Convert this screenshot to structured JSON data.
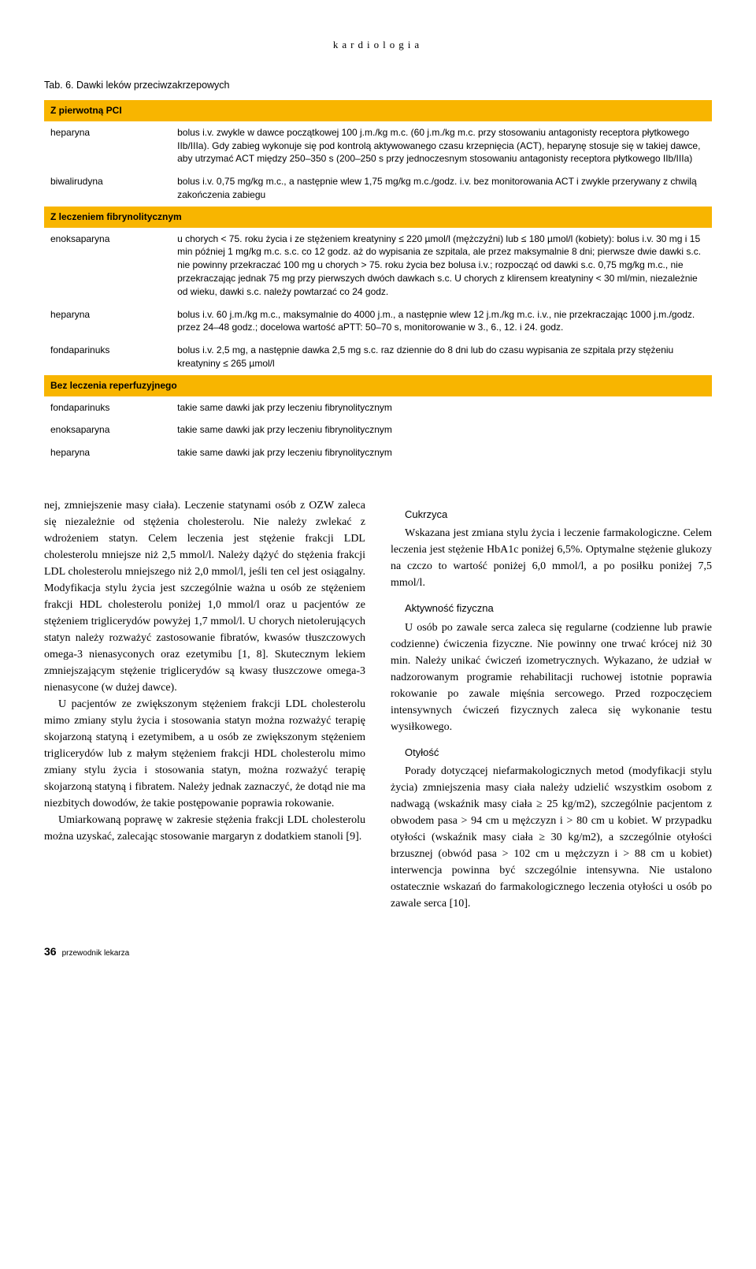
{
  "header": "kardiologia",
  "tableCaption": "Tab. 6. Dawki leków przeciwzakrzepowych",
  "sections": [
    {
      "title": "Z pierwotną PCI",
      "rows": [
        {
          "drug": "heparyna",
          "desc": "bolus i.v. zwykle w dawce początkowej 100 j.m./kg m.c. (60 j.m./kg m.c. przy stosowaniu antagonisty receptora płytkowego IIb/IIIa). Gdy zabieg wykonuje się pod kontrolą aktywowanego czasu krzepnięcia (ACT), heparynę stosuje się w takiej dawce, aby utrzymać ACT między 250–350 s (200–250 s przy jednoczesnym stosowaniu antagonisty receptora płytkowego IIb/IIIa)"
        },
        {
          "drug": "biwalirudyna",
          "desc": "bolus i.v. 0,75 mg/kg m.c., a następnie wlew 1,75 mg/kg m.c./godz. i.v. bez monitorowania ACT i zwykle przerywany z chwilą zakończenia zabiegu"
        }
      ]
    },
    {
      "title": "Z leczeniem fibrynolitycznym",
      "rows": [
        {
          "drug": "enoksaparyna",
          "desc": "u chorych < 75. roku życia i ze stężeniem kreatyniny ≤ 220 µmol/l (mężczyźni) lub ≤ 180 µmol/l (kobiety): bolus i.v. 30 mg i 15 min później 1 mg/kg m.c. s.c. co 12 godz. aż do wypisania ze szpitala, ale przez maksymalnie 8 dni; pierwsze dwie dawki s.c. nie powinny przekraczać 100 mg u chorych > 75. roku życia bez bolusa i.v.; rozpocząć od dawki s.c. 0,75 mg/kg m.c., nie przekraczając jednak 75 mg przy pierwszych dwóch dawkach s.c. U chorych z klirensem kreatyniny < 30 ml/min, niezależnie od wieku, dawki s.c. należy powtarzać co 24 godz."
        },
        {
          "drug": "heparyna",
          "desc": "bolus i.v. 60 j.m./kg m.c., maksymalnie do 4000 j.m., a następnie wlew 12 j.m./kg m.c. i.v., nie przekraczając 1000 j.m./godz. przez 24–48 godz.; docelowa wartość aPTT: 50–70 s, monitorowanie w 3., 6., 12. i 24. godz."
        },
        {
          "drug": "fondaparinuks",
          "desc": "bolus i.v. 2,5 mg, a następnie dawka 2,5 mg s.c. raz dziennie do 8 dni lub do czasu wypisania ze szpitala przy stężeniu kreatyniny ≤ 265 µmol/l"
        }
      ]
    },
    {
      "title": "Bez leczenia reperfuzyjnego",
      "rows": [
        {
          "drug": "fondaparinuks",
          "desc": "takie same dawki jak przy leczeniu fibrynolitycznym"
        },
        {
          "drug": "enoksaparyna",
          "desc": "takie same dawki jak przy leczeniu fibrynolitycznym"
        },
        {
          "drug": "heparyna",
          "desc": "takie same dawki jak przy leczeniu fibrynolitycznym"
        }
      ]
    }
  ],
  "leftCol": {
    "p1": "nej, zmniejszenie masy ciała). Leczenie statynami osób z OZW zaleca się niezależnie od stężenia cholesterolu. Nie należy zwlekać z wdrożeniem statyn. Celem leczenia jest stężenie frakcji LDL cholesterolu mniejsze niż 2,5 mmol/l. Należy dążyć do stężenia frakcji LDL cholesterolu mniejszego niż 2,0 mmol/l, jeśli ten cel jest osiągalny. Modyfikacja stylu życia jest szczególnie ważna u osób ze stężeniem frakcji HDL cholesterolu poniżej 1,0 mmol/l oraz u pacjentów ze stężeniem triglicerydów powyżej 1,7 mmol/l. U chorych nietolerujących statyn należy rozważyć zastosowanie fibratów, kwasów tłuszczowych omega-3 nienasyconych oraz ezetymibu [1, 8]. Skutecznym lekiem zmniejszającym stężenie triglicerydów są kwasy tłuszczowe omega-3 nienasycone (w dużej dawce).",
    "p2": "U pacjentów ze zwiększonym stężeniem frakcji LDL cholesterolu mimo zmiany stylu życia i stosowania statyn można rozważyć terapię skojarzoną statyną i ezetymibem, a u osób ze zwiększonym stężeniem triglicerydów lub z małym stężeniem frakcji HDL cholesterolu mimo zmiany stylu życia i stosowania statyn, można rozważyć terapię skojarzoną statyną i fibratem. Należy jednak zaznaczyć, że dotąd nie ma niezbitych dowodów, że takie postępowanie poprawia rokowanie.",
    "p3": "Umiarkowaną poprawę w zakresie stężenia frakcji LDL cholesterolu można uzyskać, zalecając stosowanie margaryn z dodatkiem stanoli [9]."
  },
  "rightCol": {
    "h1": "Cukrzyca",
    "p1": "Wskazana jest zmiana stylu życia i leczenie farmakologiczne. Celem leczenia jest stężenie HbA1c poniżej 6,5%. Optymalne stężenie glukozy na czczo to wartość poniżej 6,0 mmol/l, a po posiłku poniżej 7,5 mmol/l.",
    "h2": "Aktywność fizyczna",
    "p2": "U osób po zawale serca zaleca się regularne (codzienne lub prawie codzienne) ćwiczenia fizyczne. Nie powinny one trwać krócej niż 30 min. Należy unikać ćwiczeń izometrycznych. Wykazano, że udział w nadzorowanym programie rehabilitacji ruchowej istotnie poprawia rokowanie po zawale mięśnia sercowego. Przed rozpoczęciem intensywnych ćwiczeń fizycznych zaleca się wykonanie testu wysiłkowego.",
    "h3": "Otyłość",
    "p3": "Porady dotyczącej niefarmakologicznych metod (modyfikacji stylu życia) zmniejszenia masy ciała należy udzielić wszystkim osobom z nadwagą (wskaźnik masy ciała ≥ 25 kg/m2), szczególnie pacjentom z obwodem pasa > 94 cm u mężczyzn i > 80 cm u kobiet. W przypadku otyłości (wskaźnik masy ciała ≥ 30 kg/m2), a szczególnie otyłości brzusznej (obwód pasa > 102 cm u mężczyzn i > 88 cm u kobiet) interwencja powinna być szczególnie intensywna. Nie ustalono ostatecznie wskazań do farmakologicznego leczenia otyłości u osób po zawale serca [10]."
  },
  "footer": {
    "page": "36",
    "pub": "przewodnik lekarza"
  }
}
